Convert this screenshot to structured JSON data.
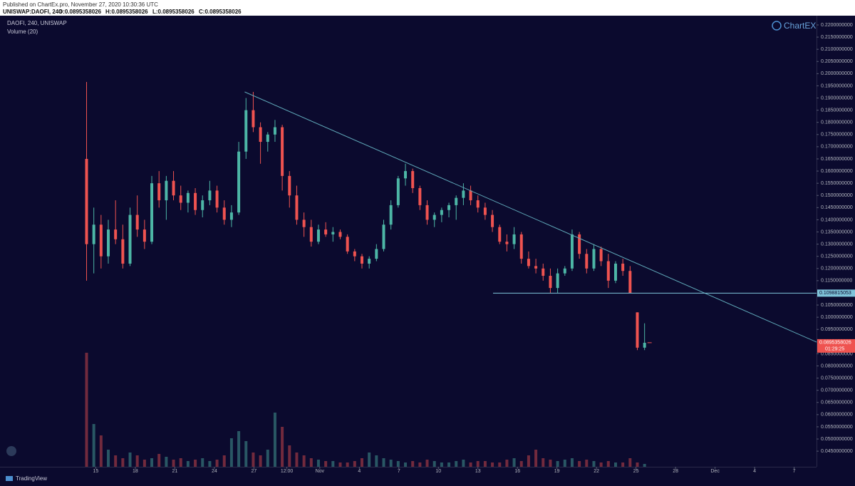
{
  "header": {
    "published": "Published on ChartEx.pro, November 27, 2020 10:30:36 UTC",
    "symbol": "UNISWAP:DAOFI, 240",
    "open": "O:0.0895358026",
    "high": "H:0.0895358026",
    "low": "L:0.0895358026",
    "close": "C:0.0895358026"
  },
  "chart_data": {
    "type": "candlestick",
    "legend": [
      "DAOFI, 240, UNISWAP",
      "Volume (20)"
    ],
    "brand": "ChartEX",
    "footer": "TradingView",
    "xlim": [
      7.73,
      69.7
    ],
    "ylim": [
      0.0386,
      0.2238
    ],
    "xticks": [
      {
        "value": 15,
        "label": "15"
      },
      {
        "value": 18,
        "label": "18"
      },
      {
        "value": 21,
        "label": "21"
      },
      {
        "value": 24,
        "label": "24"
      },
      {
        "value": 27,
        "label": "27"
      },
      {
        "value": 29.5,
        "label": "12:00"
      },
      {
        "value": 32,
        "label": "Nov"
      },
      {
        "value": 35,
        "label": "4"
      },
      {
        "value": 38,
        "label": "7"
      },
      {
        "value": 41,
        "label": "10"
      },
      {
        "value": 44,
        "label": "13"
      },
      {
        "value": 47,
        "label": "16"
      },
      {
        "value": 50,
        "label": "19"
      },
      {
        "value": 53,
        "label": "22"
      },
      {
        "value": 56,
        "label": "25"
      },
      {
        "value": 59,
        "label": "28"
      },
      {
        "value": 62,
        "label": "Dec"
      },
      {
        "value": 65,
        "label": "4"
      },
      {
        "value": 68,
        "label": "7"
      }
    ],
    "yticks": [
      {
        "value": 0.045,
        "label": "0.0450000000"
      },
      {
        "value": 0.05,
        "label": "0.0500000000"
      },
      {
        "value": 0.055,
        "label": "0.0550000000"
      },
      {
        "value": 0.06,
        "label": "0.0600000000"
      },
      {
        "value": 0.065,
        "label": "0.0650000000"
      },
      {
        "value": 0.07,
        "label": "0.0700000000"
      },
      {
        "value": 0.075,
        "label": "0.0750000000"
      },
      {
        "value": 0.08,
        "label": "0.0800000000"
      },
      {
        "value": 0.085,
        "label": "0.0850000000"
      },
      {
        "value": 0.095,
        "label": "0.0950000000"
      },
      {
        "value": 0.1,
        "label": "0.1000000000"
      },
      {
        "value": 0.105,
        "label": "0.1050000000"
      },
      {
        "value": 0.115,
        "label": "0.1150000000"
      },
      {
        "value": 0.12,
        "label": "0.1200000000"
      },
      {
        "value": 0.125,
        "label": "0.1250000000"
      },
      {
        "value": 0.13,
        "label": "0.1300000000"
      },
      {
        "value": 0.135,
        "label": "0.1350000000"
      },
      {
        "value": 0.14,
        "label": "0.1400000000"
      },
      {
        "value": 0.145,
        "label": "0.1450000000"
      },
      {
        "value": 0.15,
        "label": "0.1500000000"
      },
      {
        "value": 0.155,
        "label": "0.1550000000"
      },
      {
        "value": 0.16,
        "label": "0.1600000000"
      },
      {
        "value": 0.165,
        "label": "0.1650000000"
      },
      {
        "value": 0.17,
        "label": "0.1700000000"
      },
      {
        "value": 0.175,
        "label": "0.1750000000"
      },
      {
        "value": 0.18,
        "label": "0.1800000000"
      },
      {
        "value": 0.185,
        "label": "0.1850000000"
      },
      {
        "value": 0.19,
        "label": "0.1900000000"
      },
      {
        "value": 0.195,
        "label": "0.1950000000"
      },
      {
        "value": 0.2,
        "label": "0.2000000000"
      },
      {
        "value": 0.205,
        "label": "0.2050000000"
      },
      {
        "value": 0.21,
        "label": "0.2100000000"
      },
      {
        "value": 0.215,
        "label": "0.2150000000"
      },
      {
        "value": 0.22,
        "label": "0.2200000000"
      }
    ],
    "up_color": "#4db6a6",
    "down_color": "#ef5350",
    "candles": [
      [
        14.3,
        0.165,
        0.1966,
        0.115,
        0.13
      ],
      [
        14.85,
        0.13,
        0.145,
        0.118,
        0.138
      ],
      [
        15.4,
        0.138,
        0.142,
        0.12,
        0.125
      ],
      [
        15.95,
        0.125,
        0.14,
        0.122,
        0.136
      ],
      [
        16.5,
        0.136,
        0.148,
        0.13,
        0.132
      ],
      [
        17.05,
        0.132,
        0.138,
        0.12,
        0.122
      ],
      [
        17.6,
        0.122,
        0.145,
        0.121,
        0.142
      ],
      [
        18.15,
        0.142,
        0.15,
        0.133,
        0.136
      ],
      [
        18.7,
        0.136,
        0.14,
        0.128,
        0.131
      ],
      [
        19.25,
        0.131,
        0.158,
        0.13,
        0.155
      ],
      [
        19.8,
        0.155,
        0.16,
        0.145,
        0.148
      ],
      [
        20.35,
        0.148,
        0.158,
        0.14,
        0.156
      ],
      [
        20.9,
        0.156,
        0.16,
        0.148,
        0.15
      ],
      [
        21.45,
        0.15,
        0.154,
        0.144,
        0.147
      ],
      [
        22,
        0.147,
        0.152,
        0.143,
        0.151
      ],
      [
        22.55,
        0.151,
        0.153,
        0.142,
        0.144
      ],
      [
        23.1,
        0.144,
        0.15,
        0.141,
        0.148
      ],
      [
        23.65,
        0.148,
        0.156,
        0.146,
        0.152
      ],
      [
        24.2,
        0.152,
        0.154,
        0.143,
        0.145
      ],
      [
        24.75,
        0.145,
        0.148,
        0.138,
        0.14
      ],
      [
        25.3,
        0.14,
        0.146,
        0.137,
        0.143
      ],
      [
        25.85,
        0.143,
        0.172,
        0.142,
        0.168
      ],
      [
        26.4,
        0.168,
        0.19,
        0.165,
        0.185
      ],
      [
        26.95,
        0.185,
        0.1925,
        0.176,
        0.178
      ],
      [
        27.5,
        0.178,
        0.18,
        0.163,
        0.172
      ],
      [
        28.05,
        0.172,
        0.176,
        0.168,
        0.175
      ],
      [
        28.6,
        0.175,
        0.181,
        0.172,
        0.178
      ],
      [
        29.15,
        0.178,
        0.179,
        0.152,
        0.158
      ],
      [
        29.7,
        0.158,
        0.16,
        0.145,
        0.15
      ],
      [
        30.25,
        0.15,
        0.154,
        0.138,
        0.14
      ],
      [
        30.8,
        0.14,
        0.143,
        0.133,
        0.137
      ],
      [
        31.35,
        0.137,
        0.14,
        0.129,
        0.131
      ],
      [
        31.9,
        0.131,
        0.138,
        0.13,
        0.136
      ],
      [
        32.45,
        0.136,
        0.139,
        0.133,
        0.134
      ],
      [
        33,
        0.134,
        0.137,
        0.131,
        0.135
      ],
      [
        33.55,
        0.135,
        0.136,
        0.132,
        0.133
      ],
      [
        34.1,
        0.133,
        0.134,
        0.126,
        0.127
      ],
      [
        34.65,
        0.127,
        0.128,
        0.123,
        0.125
      ],
      [
        35.2,
        0.125,
        0.126,
        0.12,
        0.122
      ],
      [
        35.75,
        0.122,
        0.125,
        0.12,
        0.124
      ],
      [
        36.3,
        0.124,
        0.13,
        0.123,
        0.128
      ],
      [
        36.85,
        0.128,
        0.14,
        0.127,
        0.138
      ],
      [
        37.4,
        0.138,
        0.148,
        0.136,
        0.146
      ],
      [
        37.95,
        0.146,
        0.158,
        0.145,
        0.157
      ],
      [
        38.5,
        0.157,
        0.163,
        0.154,
        0.16
      ],
      [
        39.05,
        0.16,
        0.161,
        0.151,
        0.153
      ],
      [
        39.6,
        0.153,
        0.154,
        0.144,
        0.146
      ],
      [
        40.15,
        0.146,
        0.148,
        0.138,
        0.14
      ],
      [
        40.7,
        0.14,
        0.143,
        0.137,
        0.142
      ],
      [
        41.25,
        0.142,
        0.145,
        0.139,
        0.144
      ],
      [
        41.8,
        0.144,
        0.147,
        0.141,
        0.146
      ],
      [
        42.35,
        0.146,
        0.15,
        0.14,
        0.149
      ],
      [
        42.9,
        0.149,
        0.155,
        0.146,
        0.152
      ],
      [
        43.45,
        0.152,
        0.154,
        0.146,
        0.148
      ],
      [
        44,
        0.148,
        0.15,
        0.143,
        0.145
      ],
      [
        44.55,
        0.145,
        0.147,
        0.14,
        0.142
      ],
      [
        45.1,
        0.142,
        0.144,
        0.135,
        0.137
      ],
      [
        45.65,
        0.137,
        0.138,
        0.13,
        0.131
      ],
      [
        46.2,
        0.131,
        0.134,
        0.127,
        0.13
      ],
      [
        46.75,
        0.13,
        0.137,
        0.128,
        0.134
      ],
      [
        47.3,
        0.134,
        0.135,
        0.122,
        0.124
      ],
      [
        47.85,
        0.124,
        0.127,
        0.12,
        0.121
      ],
      [
        48.4,
        0.121,
        0.124,
        0.118,
        0.12
      ],
      [
        48.95,
        0.12,
        0.122,
        0.115,
        0.117
      ],
      [
        49.5,
        0.117,
        0.12,
        0.11,
        0.112
      ],
      [
        50.05,
        0.112,
        0.12,
        0.11,
        0.118
      ],
      [
        50.6,
        0.118,
        0.121,
        0.117,
        0.12
      ],
      [
        51.15,
        0.12,
        0.136,
        0.119,
        0.134
      ],
      [
        51.7,
        0.134,
        0.135,
        0.124,
        0.126
      ],
      [
        52.25,
        0.126,
        0.128,
        0.118,
        0.12
      ],
      [
        52.8,
        0.12,
        0.13,
        0.119,
        0.128
      ],
      [
        53.35,
        0.128,
        0.129,
        0.121,
        0.123
      ],
      [
        53.9,
        0.123,
        0.126,
        0.112,
        0.115
      ],
      [
        54.45,
        0.115,
        0.123,
        0.114,
        0.122
      ],
      [
        55,
        0.122,
        0.124,
        0.117,
        0.119
      ],
      [
        55.55,
        0.119,
        0.121,
        0.11,
        0.1099
      ],
      [
        56.1,
        0.102,
        0.102,
        0.0865,
        0.0875
      ],
      [
        56.65,
        0.0875,
        0.0975,
        0.0865,
        0.0895
      ]
    ],
    "volume": [
      80,
      30,
      22,
      12,
      8,
      6,
      10,
      8,
      5,
      6,
      9,
      7,
      5,
      6,
      4,
      5,
      6,
      4,
      5,
      8,
      20,
      25,
      18,
      10,
      8,
      12,
      38,
      28,
      15,
      10,
      8,
      6,
      5,
      4,
      4,
      3,
      3,
      4,
      6,
      10,
      8,
      6,
      5,
      4,
      3,
      4,
      3,
      5,
      4,
      3,
      3,
      4,
      5,
      3,
      4,
      4,
      3,
      3,
      5,
      6,
      4,
      8,
      12,
      6,
      5,
      4,
      5,
      6,
      4,
      5,
      4,
      3,
      4,
      3,
      3,
      6,
      3,
      2
    ],
    "volume_ylim": [
      0,
      100
    ],
    "trendline": {
      "x": [
        26.3,
        69.7
      ],
      "y": [
        0.1925,
        0.0898
      ],
      "color": "#5fa8b8"
    },
    "support": {
      "value": 0.1098815053,
      "label": "0.1098815053",
      "x_start": 45.15,
      "color": "#7fc4da"
    },
    "last_price": {
      "value": 0.0895358026,
      "label": "0.0895358026",
      "countdown": "01:29:25"
    }
  }
}
